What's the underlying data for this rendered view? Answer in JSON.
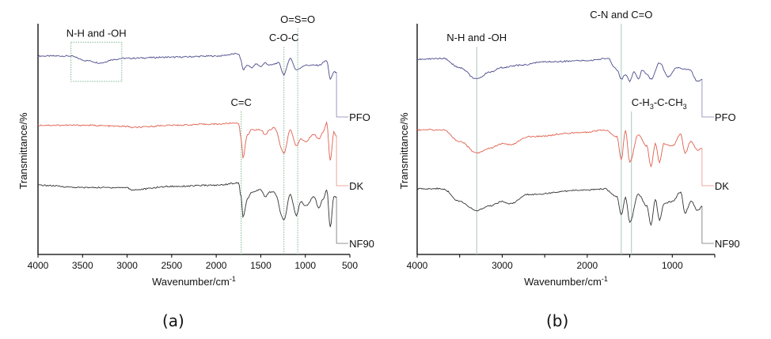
{
  "chart_data": [
    {
      "type": "line",
      "caption": "(a)",
      "xlabel": "Wavenumber/cm",
      "xlabel_sup": "-1",
      "ylabel": "Transmittance/%",
      "xlim": [
        4000,
        500
      ],
      "ylim": [
        0,
        100
      ],
      "x_ticks": [
        4000,
        3500,
        3000,
        2500,
        2000,
        1500,
        1000,
        500
      ],
      "x_tick_labels": [
        "4000",
        "3500",
        "3000",
        "2500",
        "2000",
        "1500",
        "1000",
        "500"
      ],
      "y_ticks": [],
      "grid": false,
      "series": [
        {
          "name": "PFO",
          "color": "#4b4b8c",
          "label_level": 59.6,
          "points": [
            [
              4000,
              86
            ],
            [
              3650,
              86
            ],
            [
              3450,
              84
            ],
            [
              3300,
              83
            ],
            [
              3150,
              84.5
            ],
            [
              3050,
              85
            ],
            [
              2500,
              85.5
            ],
            [
              2000,
              86
            ],
            [
              1750,
              87
            ],
            [
              1720,
              84
            ],
            [
              1700,
              80
            ],
            [
              1650,
              82
            ],
            [
              1600,
              81
            ],
            [
              1550,
              82.5
            ],
            [
              1500,
              81.5
            ],
            [
              1450,
              83
            ],
            [
              1400,
              82
            ],
            [
              1300,
              83
            ],
            [
              1240,
              78
            ],
            [
              1170,
              85
            ],
            [
              1100,
              80
            ],
            [
              1000,
              82
            ],
            [
              850,
              82
            ],
            [
              760,
              84
            ],
            [
              720,
              76
            ],
            [
              680,
              79
            ],
            [
              650,
              79
            ]
          ]
        },
        {
          "name": "DK",
          "color": "#e0604f",
          "label_level": 29.8,
          "points": [
            [
              4000,
              56
            ],
            [
              3500,
              56
            ],
            [
              3000,
              55.5
            ],
            [
              2950,
              55
            ],
            [
              2500,
              56
            ],
            [
              2000,
              56.5
            ],
            [
              1750,
              57
            ],
            [
              1720,
              50
            ],
            [
              1700,
              42
            ],
            [
              1650,
              52
            ],
            [
              1600,
              54
            ],
            [
              1500,
              54
            ],
            [
              1450,
              52
            ],
            [
              1400,
              54
            ],
            [
              1350,
              55
            ],
            [
              1240,
              44
            ],
            [
              1170,
              54
            ],
            [
              1100,
              47
            ],
            [
              1050,
              50
            ],
            [
              1000,
              49
            ],
            [
              900,
              52
            ],
            [
              850,
              50
            ],
            [
              800,
              53
            ],
            [
              760,
              57
            ],
            [
              720,
              41
            ],
            [
              680,
              53
            ],
            [
              650,
              51
            ]
          ]
        },
        {
          "name": "NF90",
          "color": "#333333",
          "label_level": 4.8,
          "points": [
            [
              4000,
              30
            ],
            [
              3500,
              29
            ],
            [
              3000,
              29
            ],
            [
              2950,
              28
            ],
            [
              2500,
              29.5
            ],
            [
              2000,
              30
            ],
            [
              1750,
              31
            ],
            [
              1720,
              25
            ],
            [
              1700,
              16
            ],
            [
              1650,
              24
            ],
            [
              1600,
              27
            ],
            [
              1500,
              28
            ],
            [
              1450,
              25
            ],
            [
              1400,
              27
            ],
            [
              1350,
              27
            ],
            [
              1240,
              15
            ],
            [
              1170,
              26
            ],
            [
              1100,
              17
            ],
            [
              1050,
              23
            ],
            [
              1000,
              21
            ],
            [
              900,
              25
            ],
            [
              850,
              20
            ],
            [
              800,
              24
            ],
            [
              760,
              28
            ],
            [
              720,
              12
            ],
            [
              680,
              25
            ],
            [
              650,
              25
            ]
          ]
        }
      ],
      "annotations": [
        {
          "text": "N-H and -OH",
          "type": "box",
          "x_range": [
            3630,
            3060
          ],
          "y_range": [
            75,
            92
          ]
        },
        {
          "text": "C=C",
          "type": "vline",
          "x": 1720,
          "from_level": 62
        },
        {
          "text": "C-O-C",
          "type": "vline",
          "x": 1240,
          "from_level": 90
        },
        {
          "text": "O=S=O",
          "type": "vline",
          "x": 1085,
          "from_level": 98
        }
      ]
    },
    {
      "type": "line",
      "caption": "(b)",
      "xlabel": "Wavenumber/cm",
      "xlabel_sup": "-1",
      "ylabel": "Transmittance/%",
      "xlim": [
        4000,
        500
      ],
      "ylim": [
        0,
        100
      ],
      "x_ticks": [
        4000,
        3500,
        3000,
        2500,
        2000,
        1500,
        1000,
        500
      ],
      "x_tick_labels": [
        "4000",
        "",
        "3000",
        "",
        "2000",
        "",
        "1000",
        ""
      ],
      "y_ticks": [],
      "grid": false,
      "series": [
        {
          "name": "PFO",
          "color": "#4b4b8c",
          "label_level": 59.6,
          "points": [
            [
              4000,
              84.5
            ],
            [
              3700,
              85
            ],
            [
              3500,
              81
            ],
            [
              3300,
              76
            ],
            [
              3150,
              79
            ],
            [
              3000,
              81
            ],
            [
              2800,
              82
            ],
            [
              2500,
              83.5
            ],
            [
              2000,
              84
            ],
            [
              1750,
              85
            ],
            [
              1680,
              81
            ],
            [
              1650,
              80
            ],
            [
              1600,
              76
            ],
            [
              1550,
              78
            ],
            [
              1500,
              75
            ],
            [
              1450,
              79
            ],
            [
              1400,
              76
            ],
            [
              1350,
              80
            ],
            [
              1300,
              78
            ],
            [
              1250,
              76
            ],
            [
              1150,
              83
            ],
            [
              1050,
              77
            ],
            [
              950,
              81
            ],
            [
              800,
              80
            ],
            [
              700,
              75
            ],
            [
              650,
              76
            ]
          ]
        },
        {
          "name": "DK",
          "color": "#e0604f",
          "label_level": 29.8,
          "points": [
            [
              4000,
              54
            ],
            [
              3700,
              54
            ],
            [
              3500,
              49
            ],
            [
              3300,
              44
            ],
            [
              3150,
              46
            ],
            [
              3000,
              48
            ],
            [
              2900,
              47.5
            ],
            [
              2700,
              51
            ],
            [
              2000,
              53
            ],
            [
              1800,
              54
            ],
            [
              1650,
              51
            ],
            [
              1600,
              41
            ],
            [
              1550,
              54
            ],
            [
              1500,
              40
            ],
            [
              1400,
              52
            ],
            [
              1300,
              47
            ],
            [
              1250,
              38
            ],
            [
              1200,
              48
            ],
            [
              1150,
              40
            ],
            [
              1100,
              48
            ],
            [
              1000,
              47
            ],
            [
              900,
              52
            ],
            [
              850,
              44
            ],
            [
              780,
              49
            ],
            [
              700,
              45
            ],
            [
              650,
              46
            ]
          ]
        },
        {
          "name": "NF90",
          "color": "#333333",
          "label_level": 4.8,
          "points": [
            [
              4000,
              28.5
            ],
            [
              3700,
              28.5
            ],
            [
              3500,
              23
            ],
            [
              3300,
              19
            ],
            [
              3150,
              21
            ],
            [
              3000,
              23
            ],
            [
              2900,
              22
            ],
            [
              2700,
              26
            ],
            [
              2000,
              28
            ],
            [
              1800,
              28.5
            ],
            [
              1650,
              25
            ],
            [
              1600,
              17
            ],
            [
              1550,
              25
            ],
            [
              1500,
              14
            ],
            [
              1400,
              26
            ],
            [
              1300,
              21
            ],
            [
              1250,
              13
            ],
            [
              1200,
              24
            ],
            [
              1150,
              15
            ],
            [
              1100,
              22
            ],
            [
              1000,
              23
            ],
            [
              900,
              27
            ],
            [
              850,
              18
            ],
            [
              780,
              23
            ],
            [
              700,
              19
            ],
            [
              650,
              21
            ]
          ]
        }
      ],
      "annotations": [
        {
          "text": "N-H and -OH",
          "type": "vline",
          "x": 3300,
          "from_level": 90
        },
        {
          "text": "C-N and C=O",
          "type": "vline",
          "x": 1600,
          "from_level": 100
        },
        {
          "text": "C-H3-C-CH3",
          "type": "vline",
          "x": 1480,
          "from_level": 62,
          "rich": [
            "C-H",
            "3",
            "-C-CH",
            "3"
          ]
        }
      ]
    }
  ]
}
